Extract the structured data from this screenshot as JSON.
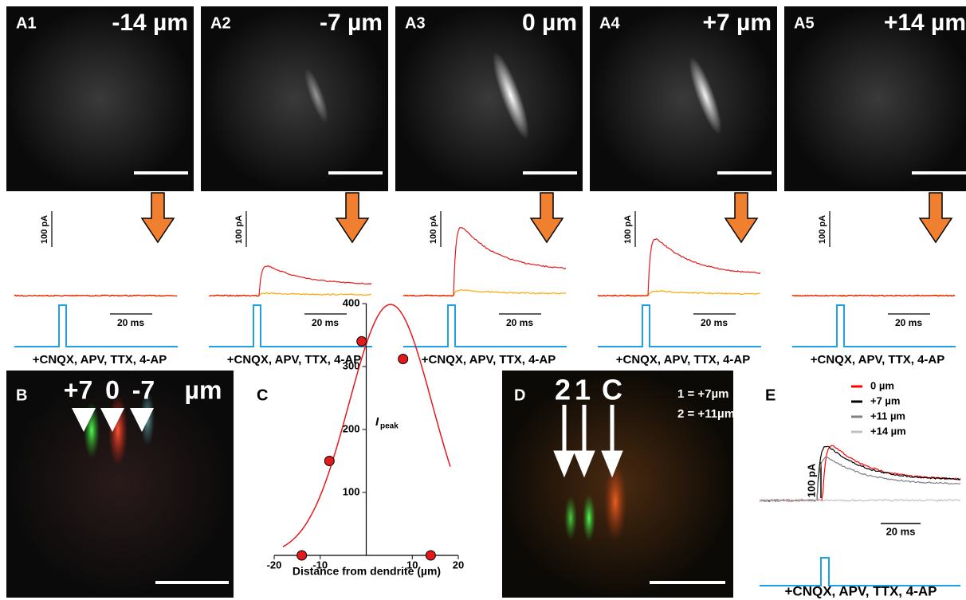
{
  "panels_a": [
    {
      "label": "A1",
      "depth": "-14 µm",
      "current_scale": "100 pA",
      "time_scale": "20 ms",
      "drug_label": "+CNQX, APV, TTX, 4-AP",
      "response_amplitude_pA": 0
    },
    {
      "label": "A2",
      "depth": "-7 µm",
      "current_scale": "100 pA",
      "time_scale": "20 ms",
      "drug_label": "+CNQX, APV, TTX, 4-AP",
      "response_amplitude_pA": 100
    },
    {
      "label": "A3",
      "depth": "0 µm",
      "current_scale": "100 pA",
      "time_scale": "20 ms",
      "drug_label": "+CNQX, APV, TTX, 4-AP",
      "response_amplitude_pA": 230
    },
    {
      "label": "A4",
      "depth": "+7 µm",
      "current_scale": "100 pA",
      "time_scale": "20 ms",
      "drug_label": "+CNQX, APV, TTX, 4-AP",
      "response_amplitude_pA": 190
    },
    {
      "label": "A5",
      "depth": "+14 µm",
      "current_scale": "100 pA",
      "time_scale": "20 ms",
      "drug_label": "+CNQX, APV, TTX, 4-AP",
      "response_amplitude_pA": 0
    }
  ],
  "panel_b": {
    "label": "B",
    "markers": [
      "+7",
      "0",
      "-7"
    ],
    "unit": "µm"
  },
  "chart_data": {
    "type": "scatter",
    "panel_label": "C",
    "x_label": "Distance from dendrite (µm)",
    "y_label": "I",
    "y_label_sub": "peak",
    "x": [
      -14,
      -8,
      -1,
      8,
      14
    ],
    "values": [
      0,
      150,
      340,
      312,
      0
    ],
    "color": "#e31a1c",
    "xlim": [
      -20,
      20
    ],
    "ylim": [
      0,
      400
    ],
    "xticks": [
      -20,
      -10,
      10,
      20
    ],
    "yticks": [
      100,
      200,
      300,
      400
    ]
  },
  "panel_d": {
    "label": "D",
    "markers": [
      "2",
      "1",
      "C"
    ],
    "notes": [
      "1 = +7µm",
      "2 = +11µm"
    ]
  },
  "panel_e": {
    "label": "E",
    "current_scale": "100 pA",
    "time_scale": "20 ms",
    "drug_label": "+CNQX, APV, TTX, 4-AP",
    "series": [
      {
        "name": "0 µm",
        "color": "#ff0000",
        "response_amplitude_pA": 190
      },
      {
        "name": "+7 µm",
        "color": "#000000",
        "response_amplitude_pA": 190
      },
      {
        "name": "+11 µm",
        "color": "#808080",
        "response_amplitude_pA": 150
      },
      {
        "name": "+14 µm",
        "color": "#c0c0c0",
        "response_amplitude_pA": 0
      }
    ]
  }
}
